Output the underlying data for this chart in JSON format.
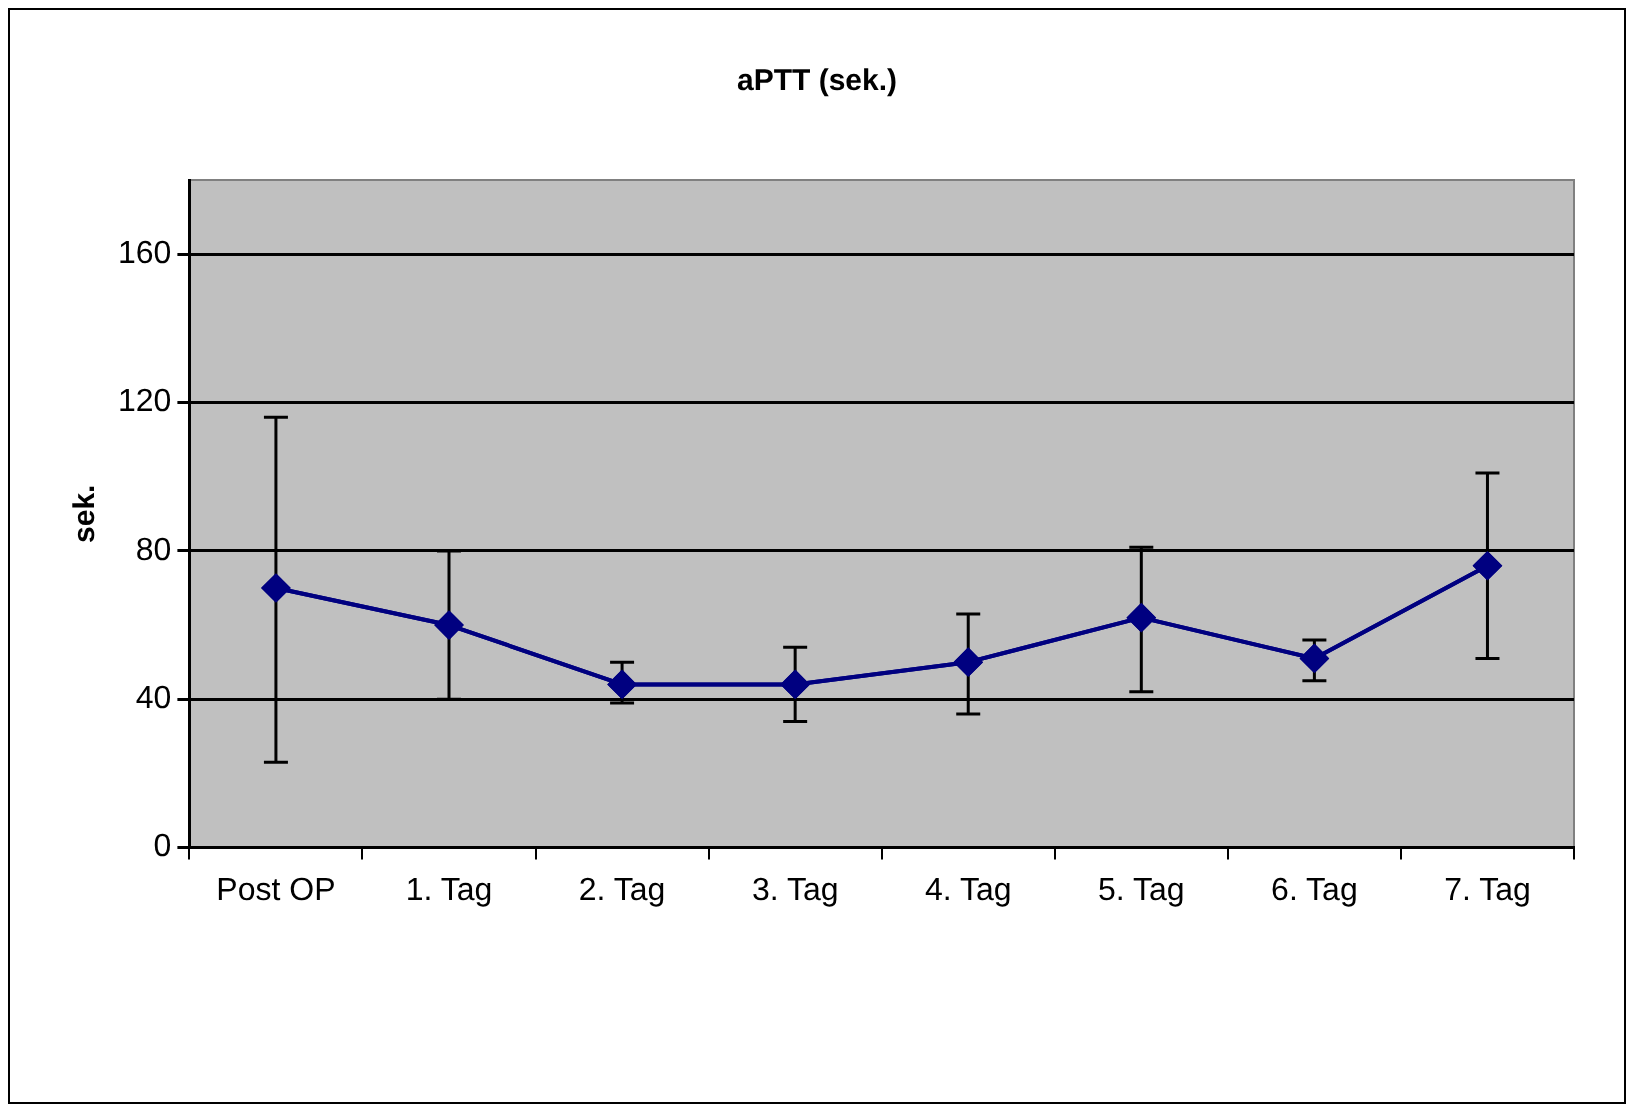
{
  "chart_data": {
    "type": "line",
    "title": "aPTT (sek.)",
    "ylabel": "sek.",
    "categories": [
      "Post OP",
      "1. Tag",
      "2. Tag",
      "3. Tag",
      "4. Tag",
      "5. Tag",
      "6. Tag",
      "7. Tag"
    ],
    "series": [
      {
        "color": "#000080",
        "values": [
          70,
          60,
          44,
          44,
          50,
          62,
          51,
          76
        ],
        "errors": [
          [
            23,
            116
          ],
          [
            40,
            80
          ],
          [
            39,
            50
          ],
          [
            34,
            54
          ],
          [
            36,
            63
          ],
          [
            42,
            81
          ],
          [
            45,
            56
          ],
          [
            51,
            101
          ]
        ]
      }
    ],
    "ylim": [
      0,
      180
    ],
    "yticks": [
      0,
      40,
      80,
      120,
      160
    ],
    "grid": "y",
    "legend": false,
    "marker": "diamond",
    "line_style": "solid"
  }
}
